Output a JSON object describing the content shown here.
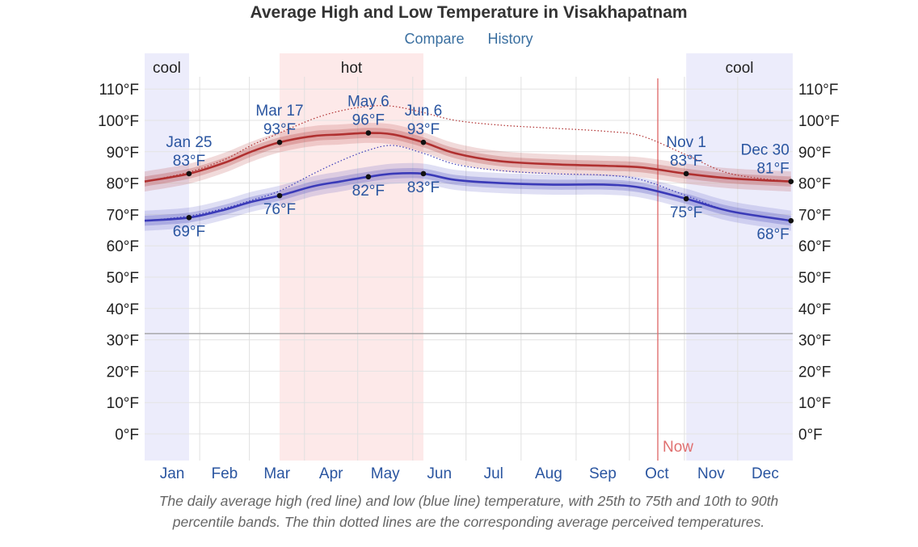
{
  "header": {
    "title": "Average High and Low Temperature in Visakhapatnam",
    "links": [
      "Compare",
      "History"
    ]
  },
  "caption": {
    "line1": "The daily average high (red line) and low (blue line) temperature, with 25th to 75th and 10th to 90th",
    "line2": "percentile bands. The thin dotted lines are the corresponding average perceived temperatures."
  },
  "colors": {
    "high": "#b03030",
    "low": "#3a3ab8",
    "hot_season": "#fde9e9",
    "cool_season": "#ececfb",
    "now_line": "#e07070",
    "annotation": "#2a55a0"
  },
  "chart_data": {
    "type": "line",
    "x_unit": "day_of_year",
    "ylim": [
      -9,
      118
    ],
    "yticks": [
      0,
      10,
      20,
      30,
      40,
      50,
      60,
      70,
      80,
      90,
      100,
      110
    ],
    "ytick_labels": [
      "0°F",
      "10°F",
      "20°F",
      "30°F",
      "40°F",
      "50°F",
      "60°F",
      "70°F",
      "80°F",
      "90°F",
      "100°F",
      "110°F"
    ],
    "freezing_line": 32,
    "months": [
      "Jan",
      "Feb",
      "Mar",
      "Apr",
      "May",
      "Jun",
      "Jul",
      "Aug",
      "Sep",
      "Oct",
      "Nov",
      "Dec"
    ],
    "seasons": [
      {
        "label": "cool",
        "start": 0,
        "end": 25,
        "kind": "cool"
      },
      {
        "label": "hot",
        "start": 76,
        "end": 157,
        "kind": "hot"
      },
      {
        "label": "cool",
        "start": 305,
        "end": 365,
        "kind": "cool"
      }
    ],
    "now": {
      "label": "Now",
      "day": 289
    },
    "series": [
      {
        "name": "High",
        "x": [
          0,
          25,
          45,
          60,
          76,
          95,
          110,
          126,
          140,
          157,
          175,
          200,
          230,
          260,
          280,
          305,
          330,
          364
        ],
        "y": [
          80.5,
          83,
          86.5,
          90,
          93,
          95,
          95.5,
          96,
          95.5,
          93,
          89.5,
          87,
          86,
          85.5,
          85,
          83,
          81.5,
          80.5
        ]
      },
      {
        "name": "Low",
        "x": [
          0,
          25,
          45,
          60,
          76,
          95,
          110,
          126,
          140,
          157,
          175,
          200,
          230,
          260,
          280,
          305,
          330,
          364
        ],
        "y": [
          68,
          69,
          71.5,
          74,
          76,
          79,
          80.5,
          82,
          83,
          83,
          81,
          80,
          79.5,
          79.5,
          78.5,
          75,
          71,
          68
        ]
      },
      {
        "name": "High perceived",
        "x": [
          0,
          25,
          45,
          60,
          76,
          95,
          110,
          126,
          140,
          157,
          175,
          200,
          230,
          260,
          280,
          305,
          330,
          364
        ],
        "y": [
          80.5,
          83.5,
          87.5,
          92,
          96,
          100.5,
          103,
          104.5,
          104.5,
          102.5,
          100,
          98.5,
          97.5,
          96.5,
          95,
          89,
          83,
          80.5
        ]
      },
      {
        "name": "Low perceived",
        "x": [
          0,
          25,
          45,
          60,
          76,
          95,
          110,
          126,
          140,
          157,
          175,
          200,
          230,
          260,
          280,
          305,
          330,
          364
        ],
        "y": [
          68,
          69.5,
          72,
          74.5,
          77.5,
          83,
          87,
          90.5,
          92,
          89.5,
          86,
          84,
          83,
          82.5,
          81,
          76,
          71,
          68
        ]
      }
    ],
    "annotations": [
      {
        "date": "Jan 25",
        "value": "83°F",
        "x": 25,
        "y": 83,
        "pos": "above"
      },
      {
        "date": "Mar 17",
        "value": "93°F",
        "x": 76,
        "y": 93,
        "pos": "above"
      },
      {
        "date": "May 6",
        "value": "96°F",
        "x": 126,
        "y": 96,
        "pos": "above"
      },
      {
        "date": "Jun 6",
        "value": "93°F",
        "x": 157,
        "y": 93,
        "pos": "above"
      },
      {
        "date": "Nov 1",
        "value": "83°F",
        "x": 305,
        "y": 83,
        "pos": "above"
      },
      {
        "date": "Dec 30",
        "value": "81°F",
        "x": 364,
        "y": 80.5,
        "pos": "above-left"
      },
      {
        "date": "",
        "value": "69°F",
        "x": 25,
        "y": 69,
        "pos": "below"
      },
      {
        "date": "",
        "value": "76°F",
        "x": 76,
        "y": 76,
        "pos": "below"
      },
      {
        "date": "",
        "value": "82°F",
        "x": 126,
        "y": 82,
        "pos": "below"
      },
      {
        "date": "",
        "value": "83°F",
        "x": 157,
        "y": 83,
        "pos": "below"
      },
      {
        "date": "",
        "value": "75°F",
        "x": 305,
        "y": 75,
        "pos": "below"
      },
      {
        "date": "",
        "value": "68°F",
        "x": 364,
        "y": 68,
        "pos": "below-left"
      }
    ]
  }
}
